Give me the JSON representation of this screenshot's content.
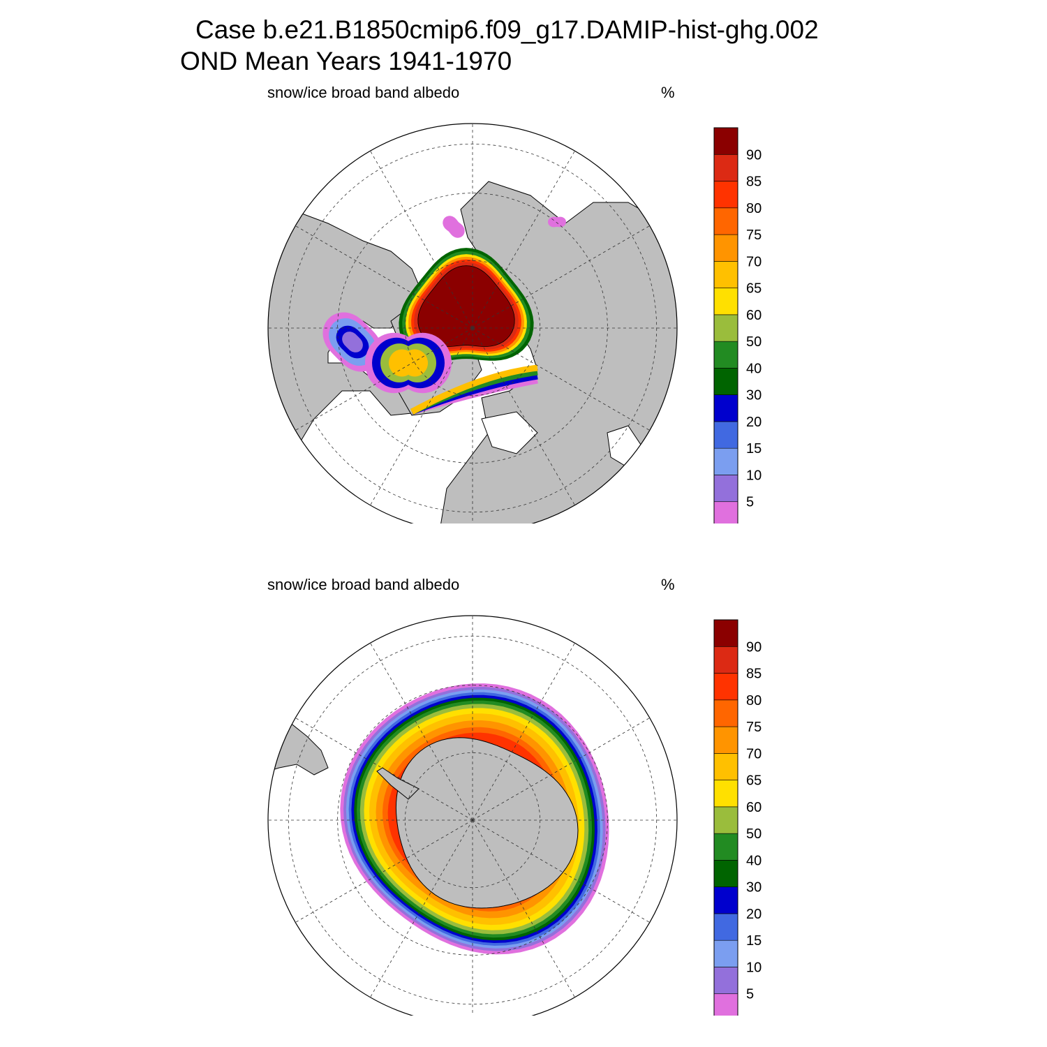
{
  "title": {
    "line1": "Case b.e21.B1850cmip6.f09_g17.DAMIP-hist-ghg.002",
    "line2": "OND Mean   Years 1941-1970"
  },
  "colors": {
    "land": "#bebebe",
    "ocean": "#ffffff",
    "levels": [
      "#e070de",
      "#9370db",
      "#7b9ef0",
      "#4169e1",
      "#0000cd",
      "#006400",
      "#228b22",
      "#9abd3c",
      "#ffe000",
      "#ffc000",
      "#ff9400",
      "#ff6600",
      "#ff3300",
      "#dc2a14",
      "#8b0000"
    ]
  },
  "colorbar": {
    "labels": [
      "5",
      "10",
      "15",
      "20",
      "30",
      "40",
      "50",
      "60",
      "65",
      "70",
      "75",
      "80",
      "85",
      "90"
    ]
  },
  "panels": [
    {
      "id": "north",
      "subtitle": "snow/ice broad band albedo",
      "units": "%",
      "hemisphere": "Arctic (North Polar Stereographic)"
    },
    {
      "id": "south",
      "subtitle": "snow/ice broad band albedo",
      "units": "%",
      "hemisphere": "Antarctic (South Polar Stereographic)"
    }
  ]
}
